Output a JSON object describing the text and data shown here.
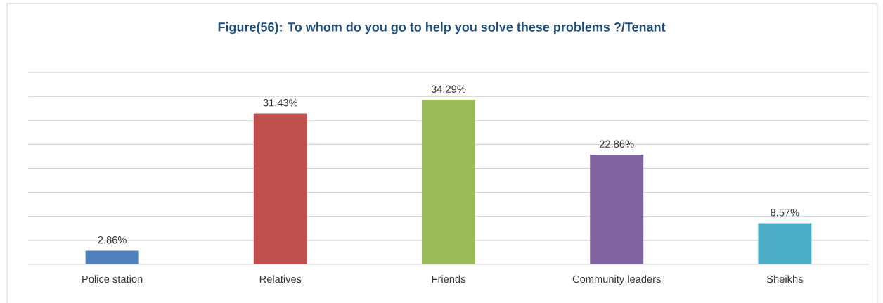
{
  "chart_data": {
    "type": "bar",
    "title": "Figure(56): To whom do you go to help you solve these problems ?/Tenant",
    "categories": [
      "Police station",
      "Relatives",
      "Friends",
      "Community leaders",
      "Sheikhs"
    ],
    "values": [
      2.86,
      31.43,
      34.29,
      22.86,
      8.57
    ],
    "colors": [
      "#4f81bd",
      "#c0504d",
      "#9bbb59",
      "#8064a2",
      "#4bacc6"
    ],
    "value_labels": [
      "2.86%",
      "31.43%",
      "34.29%",
      "22.86%",
      "8.57%"
    ],
    "ylim": [
      0,
      40
    ],
    "yticks": [
      {
        "value": 0,
        "label": null
      },
      {
        "value": 5,
        "label": null
      },
      {
        "value": 10,
        "label": null
      },
      {
        "value": 15,
        "label": null
      },
      {
        "value": 20,
        "label": null
      },
      {
        "value": 25,
        "label": null
      },
      {
        "value": 30,
        "label": null
      },
      {
        "value": 35,
        "label": null
      },
      {
        "value": 40,
        "label": null
      }
    ],
    "grid": "y",
    "tick_labels": "x"
  }
}
